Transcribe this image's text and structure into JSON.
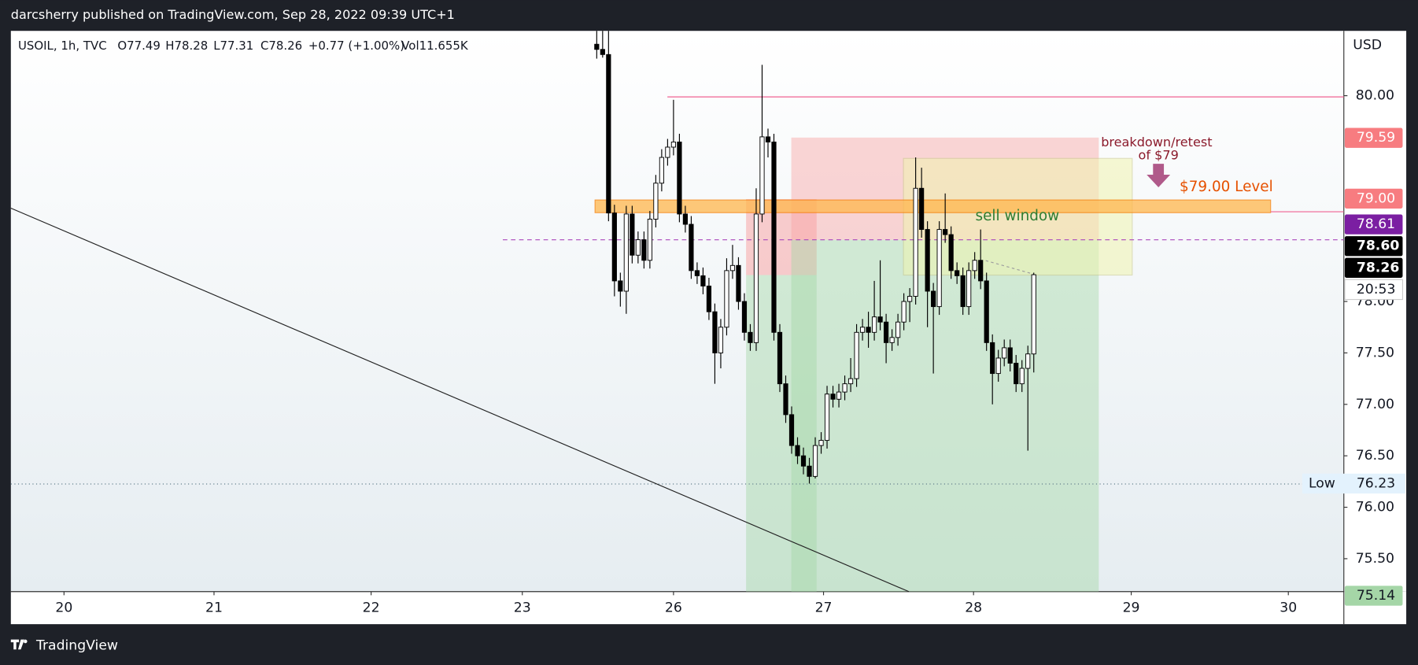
{
  "header": "darcsherry published on TradingView.com, Sep 28, 2022 09:39 UTC+1",
  "footer_brand": "TradingView",
  "chart_data": {
    "type": "candlestick",
    "legend": {
      "symbol": "USOIL, 1h, TVC",
      "open": "O77.49",
      "high": "H78.28",
      "low": "L77.31",
      "close": "C78.26",
      "change": "+0.77 (+1.00%)",
      "volume": "Vol11.655K"
    },
    "currency": "USD",
    "up_color": "#ffffff",
    "down_color": "#000000",
    "x": [
      100,
      101,
      102,
      103,
      104,
      105,
      106,
      107,
      108,
      109,
      110,
      111,
      112,
      113,
      114,
      115,
      116,
      117,
      118,
      119,
      120,
      121,
      122,
      123,
      124,
      125,
      126,
      127,
      128,
      129,
      130,
      131,
      132,
      133,
      134,
      135,
      136,
      137,
      138,
      139,
      140,
      141,
      142,
      143,
      144,
      145,
      146,
      147,
      148,
      149,
      150,
      151,
      152,
      153,
      154,
      155,
      156,
      157,
      158,
      159,
      160,
      161,
      162,
      163,
      164,
      165,
      166,
      167,
      168,
      169,
      170,
      171,
      172,
      173,
      174
    ],
    "open": [
      80.5,
      80.45,
      80.4,
      78.86,
      78.2,
      78.1,
      78.85,
      78.45,
      78.6,
      78.4,
      78.8,
      79.15,
      79.4,
      79.5,
      79.55,
      78.85,
      78.75,
      78.3,
      78.25,
      78.15,
      77.9,
      77.5,
      77.75,
      78.3,
      78.35,
      78.0,
      77.7,
      77.6,
      78.85,
      79.6,
      79.55,
      77.7,
      77.2,
      76.9,
      76.6,
      76.5,
      76.4,
      76.3,
      76.6,
      76.65,
      77.1,
      77.05,
      77.12,
      77.2,
      77.25,
      77.7,
      77.75,
      77.7,
      77.85,
      77.8,
      77.6,
      77.65,
      77.8,
      78.0,
      78.05,
      79.1,
      78.7,
      78.1,
      77.95,
      78.7,
      78.65,
      78.3,
      78.25,
      77.95,
      78.3,
      78.4,
      78.2,
      77.6,
      77.3,
      77.45,
      77.55,
      77.4,
      77.2,
      77.35,
      77.49
    ],
    "high": [
      80.63,
      80.63,
      80.63,
      78.94,
      78.28,
      78.93,
      78.93,
      78.68,
      78.68,
      78.88,
      79.23,
      79.48,
      79.58,
      79.96,
      79.63,
      78.93,
      78.83,
      78.38,
      78.33,
      78.23,
      77.98,
      77.83,
      78.42,
      78.55,
      78.43,
      78.08,
      77.78,
      79.1,
      80.3,
      79.68,
      79.63,
      77.78,
      77.28,
      76.98,
      76.68,
      76.58,
      76.48,
      76.68,
      76.73,
      77.18,
      77.18,
      77.2,
      77.28,
      77.45,
      77.78,
      77.83,
      77.9,
      78.2,
      78.4,
      77.88,
      77.73,
      77.88,
      78.08,
      78.13,
      79.4,
      79.3,
      78.78,
      78.18,
      78.78,
      79.05,
      78.73,
      78.38,
      78.33,
      78.38,
      78.48,
      78.7,
      78.28,
      77.68,
      77.53,
      77.63,
      77.63,
      77.48,
      77.43,
      77.57,
      78.28
    ],
    "low": [
      80.36,
      80.37,
      78.78,
      78.05,
      77.95,
      77.88,
      78.37,
      78.37,
      78.32,
      78.32,
      78.72,
      79.07,
      79.32,
      79.42,
      78.77,
      78.67,
      78.22,
      78.17,
      78.07,
      77.82,
      77.2,
      77.35,
      77.67,
      78.22,
      77.92,
      77.62,
      77.52,
      77.52,
      78.77,
      79.4,
      77.62,
      77.12,
      76.82,
      76.52,
      76.42,
      76.32,
      76.23,
      76.28,
      76.52,
      76.57,
      76.97,
      76.97,
      77.04,
      77.12,
      77.17,
      77.62,
      77.55,
      77.62,
      77.72,
      77.4,
      77.52,
      77.57,
      77.72,
      77.8,
      77.97,
      78.62,
      77.75,
      77.3,
      77.87,
      78.57,
      78.22,
      78.17,
      77.87,
      77.87,
      78.22,
      78.12,
      77.52,
      77.0,
      77.22,
      77.37,
      77.32,
      77.12,
      77.12,
      76.55,
      77.31
    ],
    "close": [
      80.45,
      80.4,
      78.86,
      78.2,
      78.1,
      78.85,
      78.45,
      78.6,
      78.4,
      78.8,
      79.15,
      79.4,
      79.5,
      79.55,
      78.85,
      78.75,
      78.3,
      78.25,
      78.15,
      77.9,
      77.5,
      77.75,
      78.3,
      78.35,
      78.0,
      77.7,
      77.6,
      78.85,
      79.6,
      79.55,
      77.7,
      77.2,
      76.9,
      76.6,
      76.5,
      76.4,
      76.3,
      76.6,
      76.65,
      77.1,
      77.05,
      77.12,
      77.2,
      77.25,
      77.7,
      77.75,
      77.7,
      77.85,
      77.8,
      77.6,
      77.65,
      77.8,
      78.0,
      78.05,
      79.1,
      78.7,
      78.1,
      77.95,
      78.7,
      78.65,
      78.3,
      78.25,
      77.95,
      78.3,
      78.4,
      78.2,
      77.6,
      77.3,
      77.45,
      77.55,
      77.4,
      77.2,
      77.35,
      77.49,
      78.26
    ],
    "xlim": [
      0.8,
      226.5
    ],
    "xticks": [
      {
        "value": 9.8,
        "label": "20"
      },
      {
        "value": 35.2,
        "label": "21"
      },
      {
        "value": 61.8,
        "label": "22"
      },
      {
        "value": 87.4,
        "label": "23"
      },
      {
        "value": 113.0,
        "label": "26"
      },
      {
        "value": 138.4,
        "label": "27"
      },
      {
        "value": 163.8,
        "label": "28"
      },
      {
        "value": 190.5,
        "label": "29"
      },
      {
        "value": 217.1,
        "label": "30"
      }
    ],
    "ylim": [
      75.18,
      80.63
    ],
    "yticks": [
      {
        "value": 75.5,
        "label": "75.50"
      },
      {
        "value": 76,
        "label": "76.00"
      },
      {
        "value": 76.5,
        "label": "76.50"
      },
      {
        "value": 77,
        "label": "77.00"
      },
      {
        "value": 77.5,
        "label": "77.50"
      },
      {
        "value": 78,
        "label": "78.00"
      },
      {
        "value": 80,
        "label": "80.00"
      }
    ],
    "grid": false,
    "price_labels": [
      {
        "value": 79.59,
        "label": "79.59",
        "color": "#f77c80"
      },
      {
        "value": 79.0,
        "label": "79.00",
        "color": "#f77c80"
      },
      {
        "value": 78.61,
        "label": "78.61",
        "color": "#7b1fa2"
      },
      {
        "value": 78.6,
        "label": "78.60",
        "color": "#000000"
      },
      {
        "value": 78.26,
        "label": "78.26",
        "color": "#000000"
      },
      {
        "value": 75.14,
        "label": "75.14",
        "color": "#a5d6a7"
      }
    ],
    "countdown": "20:53",
    "low_marker": {
      "name": "Low",
      "value": 76.23
    },
    "annotations": [
      "breakdown/retest",
      "of $79",
      "$79.00 Level",
      "sell window"
    ]
  }
}
